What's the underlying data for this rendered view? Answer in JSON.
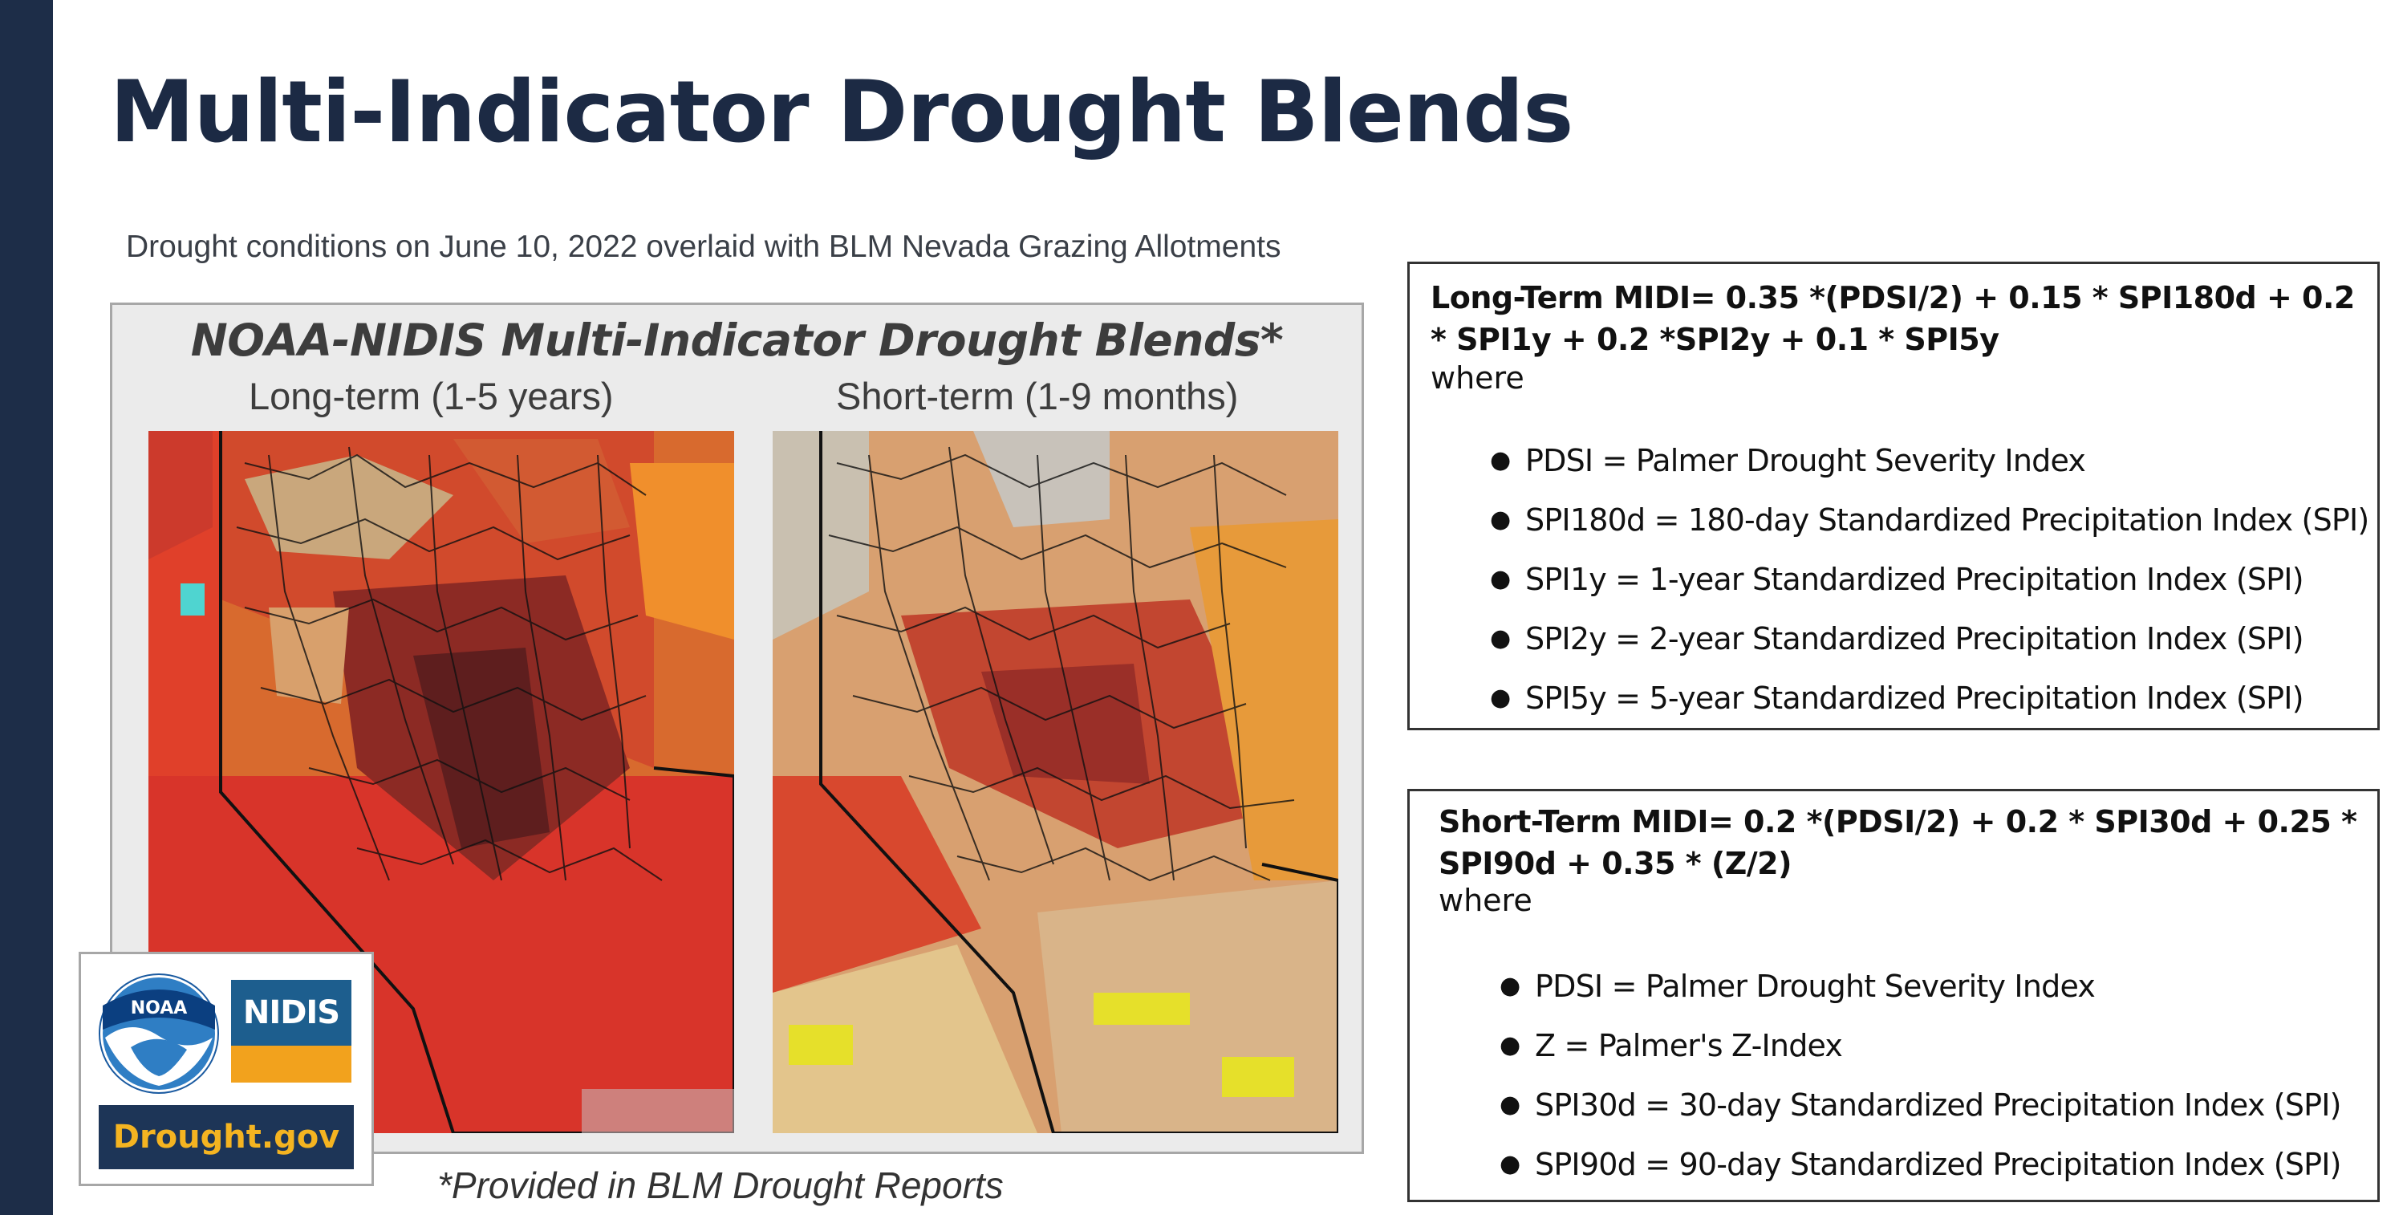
{
  "slide": {
    "title": "Multi-Indicator Drought Blends",
    "subtitle": "Drought conditions on June 10, 2022 overlaid with BLM Nevada Grazing Allotments",
    "footnote": "*Provided in BLM Drought Reports"
  },
  "map_panel": {
    "title": "NOAA-NIDIS Multi-Indicator Drought Blends*",
    "left_label": "Long-term (1-5 years)",
    "right_label": "Short-term (1-9 months)"
  },
  "logos": {
    "noaa": "NOAA",
    "nidis": "NIDIS",
    "drought_gov": "Drought.gov"
  },
  "long_term": {
    "formula": "Long-Term MIDI= 0.35 *(PDSI/2) + 0.15 * SPI180d + 0.2 * SPI1y + 0.2 *SPI2y + 0.1 * SPI5y",
    "where": "where",
    "definitions": [
      "PDSI = Palmer Drought Severity Index",
      "SPI180d = 180-day Standardized Precipitation Index (SPI)",
      "SPI1y = 1-year Standardized Precipitation Index (SPI)",
      "SPI2y = 2-year Standardized Precipitation Index (SPI)",
      "SPI5y = 5-year Standardized Precipitation Index (SPI)"
    ]
  },
  "short_term": {
    "formula": "Short-Term MIDI= 0.2 *(PDSI/2) + 0.2 * SPI30d + 0.25 * SPI90d + 0.35 * (Z/2)",
    "where": "where",
    "definitions": [
      "PDSI = Palmer Drought Severity Index",
      "Z = Palmer's Z-Index",
      "SPI30d = 30-day Standardized Precipitation Index (SPI)",
      "SPI90d = 90-day Standardized Precipitation Index (SPI)"
    ]
  },
  "colors": {
    "sidebar": "#1d2d48",
    "title": "#1c2a44",
    "drought_exceptional": "#730000",
    "drought_extreme": "#e60000",
    "drought_severe": "#ffaa00",
    "drought_moderate": "#fcd37f",
    "abnormally_dry": "#ffff00"
  }
}
